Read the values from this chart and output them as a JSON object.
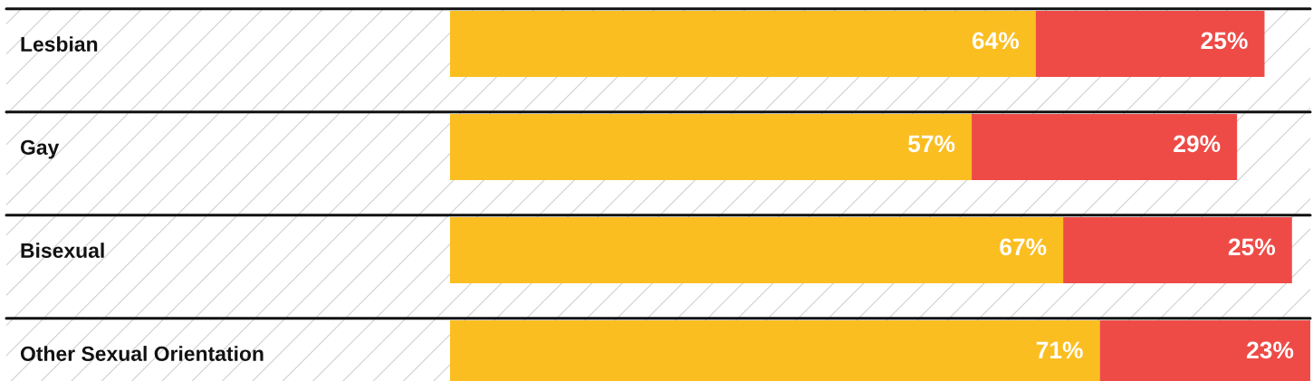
{
  "chart_data": {
    "type": "bar",
    "orientation": "horizontal",
    "stacked": true,
    "tick_labels": "y",
    "categories": [
      "Lesbian",
      "Gay",
      "Bisexual",
      "Other Sexual Orientation"
    ],
    "series": [
      {
        "color": "#fbbe21",
        "values": [
          64,
          57,
          67,
          71
        ],
        "value_labels": [
          "64%",
          "57%",
          "67%",
          "71%"
        ]
      },
      {
        "color": "#ee4b47",
        "values": [
          25,
          29,
          25,
          23
        ],
        "value_labels": [
          "25%",
          "29%",
          "25%",
          "23%"
        ]
      }
    ]
  }
}
